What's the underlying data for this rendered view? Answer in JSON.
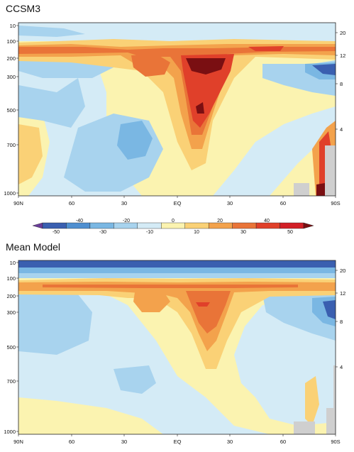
{
  "chart_data": [
    {
      "type": "heatmap",
      "title": "CCSM3",
      "x_tick_labels": [
        "90N",
        "60",
        "30",
        "EQ",
        "30",
        "60",
        "90S"
      ],
      "y_left_tick_labels": [
        "10",
        "100",
        "200",
        "300",
        "500",
        "700",
        "1000"
      ],
      "y_right_tick_labels": [
        "20",
        "12",
        "8",
        "4"
      ],
      "grid": false,
      "features": [
        {
          "level": 20,
          "lat": [
            -70,
            70
          ],
          "pressure_hpa": [
            120,
            200
          ]
        },
        {
          "level": 50,
          "lat": [
            -20,
            -5
          ],
          "pressure_hpa": [
            250,
            350
          ]
        },
        {
          "level": 40,
          "lat": [
            -25,
            0
          ],
          "pressure_hpa": [
            250,
            600
          ]
        },
        {
          "level": -30,
          "lat": [
            -90,
            -65
          ],
          "pressure_hpa": [
            270,
            330
          ]
        },
        {
          "level": -20,
          "lat": [
            45,
            25
          ],
          "pressure_hpa": [
            500,
            700
          ]
        },
        {
          "level": 30,
          "lat": [
            -85,
            -75
          ],
          "pressure_hpa": [
            600,
            1000
          ]
        }
      ]
    },
    {
      "type": "heatmap",
      "title": "Mean Model",
      "x_tick_labels": [
        "90N",
        "60",
        "30",
        "EQ",
        "30",
        "60",
        "90S"
      ],
      "y_left_tick_labels": [
        "10",
        "100",
        "200",
        "300",
        "500",
        "700",
        "1000"
      ],
      "y_right_tick_labels": [
        "20",
        "12",
        "8",
        "4"
      ],
      "grid": false,
      "features": [
        {
          "level": -30,
          "lat": [
            90,
            -90
          ],
          "pressure_hpa": [
            10,
            20
          ]
        },
        {
          "level": 20,
          "lat": [
            -70,
            70
          ],
          "pressure_hpa": [
            120,
            200
          ]
        },
        {
          "level": 40,
          "lat": [
            -15,
            -5
          ],
          "pressure_hpa": [
            200,
            230
          ]
        },
        {
          "level": -30,
          "lat": [
            -90,
            -70
          ],
          "pressure_hpa": [
            270,
            330
          ]
        }
      ]
    }
  ],
  "colorbar": {
    "upper_labels": [
      "-40",
      "-20",
      "0",
      "20",
      "40"
    ],
    "lower_labels": [
      "-50",
      "-30",
      "-10",
      "10",
      "30",
      "50"
    ],
    "colors": [
      "#6a3d9a",
      "#3a5fb0",
      "#4f8fd0",
      "#7ab7e3",
      "#a8d3ee",
      "#d4ebf6",
      "#fbf3b0",
      "#fad176",
      "#f3a24c",
      "#e97438",
      "#e0402a",
      "#d21f26",
      "#7a0f12"
    ]
  }
}
